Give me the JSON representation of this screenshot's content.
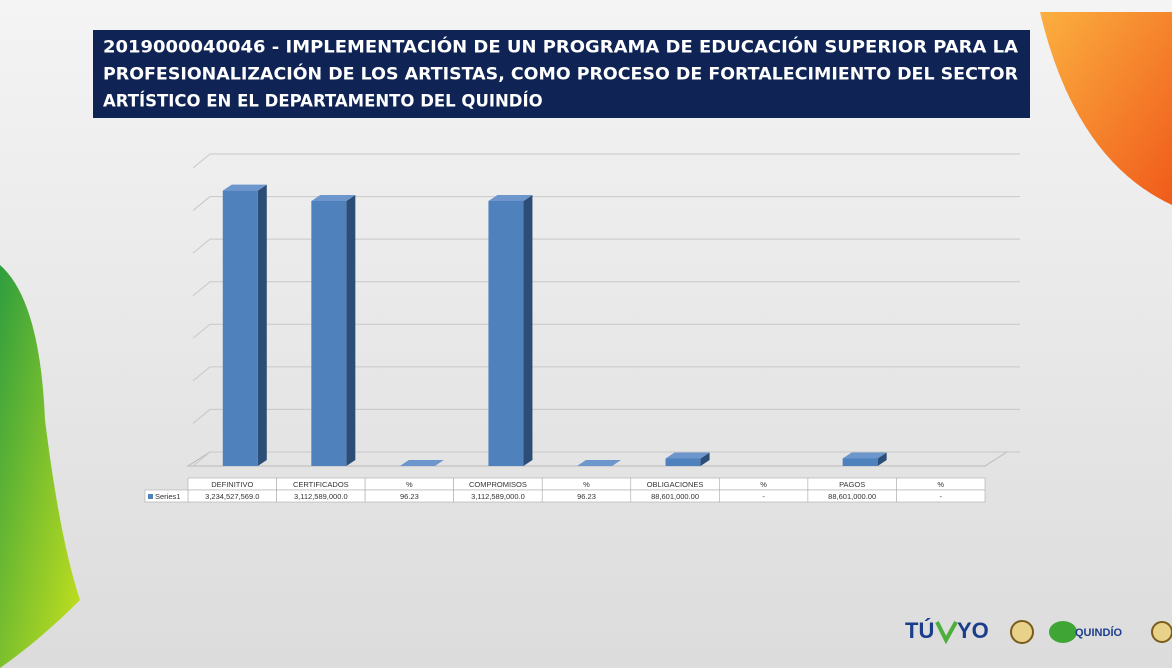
{
  "chart_data": {
    "type": "bar3d",
    "title_lines": [
      "2019000040046 - IMPLEMENTACIÓN DE UN PROGRAMA DE EDUCACIÓN SUPERIOR PARA LA",
      "PROFESIONALIZACIÓN DE LOS ARTISTAS, COMO PROCESO DE FORTALECIMIENTO DEL SECTOR",
      "ARTÍSTICO EN EL DEPARTAMENTO DEL QUINDÍO"
    ],
    "categories": [
      "DEFINITIVO",
      "CERTIFICADOS",
      "%",
      "COMPROMISOS",
      "%",
      "OBLIGACIONES",
      "%",
      "PAGOS",
      "%"
    ],
    "series": [
      {
        "name": "Series1",
        "color": "#4f81bd",
        "values": [
          3234527569,
          3112589000,
          96.23,
          3112589000,
          96.23,
          88601000,
          null,
          88601000,
          null
        ],
        "value_labels": [
          "3,234,527,569.0",
          "3,112,589,000.0",
          "96.23",
          "3,112,589,000.0",
          "96.23",
          "88,601,000.00",
          "-",
          "88,601,000.00",
          "-"
        ]
      }
    ],
    "ylim": [
      0,
      3500000000
    ],
    "yticks": [
      0,
      500000000,
      1000000000,
      1500000000,
      2000000000,
      2500000000,
      3000000000,
      3500000000
    ],
    "grid": true,
    "logos": [
      "TÚ",
      "YO",
      "QUINDÍO"
    ]
  }
}
